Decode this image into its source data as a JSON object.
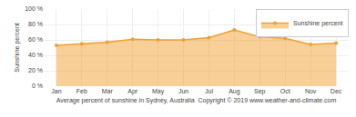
{
  "chart_data": {
    "type": "area",
    "xlabel": "Average percent of sunshine in Sydney, Australia  Copyright © 2019 www.weather-and-climate.com",
    "ylabel": "Sunshine percent",
    "categories": [
      "Jan",
      "Feb",
      "Mar",
      "Apr",
      "May",
      "Jun",
      "Jul",
      "Aug",
      "Sep",
      "Oct",
      "Nov",
      "Dec"
    ],
    "series": [
      {
        "name": "Sunshine percent",
        "color": "#f0a030",
        "marker": "circle",
        "values": [
          53,
          55,
          57,
          61,
          60,
          60,
          63,
          73,
          64,
          62,
          54,
          56
        ]
      }
    ],
    "ylim": [
      0,
      100
    ],
    "yticks": [
      {
        "value": 0,
        "label": "0 %"
      },
      {
        "value": 20,
        "label": "20 %"
      },
      {
        "value": 40,
        "label": "40 %"
      },
      {
        "value": 60,
        "label": "60 %"
      },
      {
        "value": 80,
        "label": "80 %"
      },
      {
        "value": 100,
        "label": "100 %"
      }
    ],
    "grid": true,
    "legend": "upper right"
  }
}
